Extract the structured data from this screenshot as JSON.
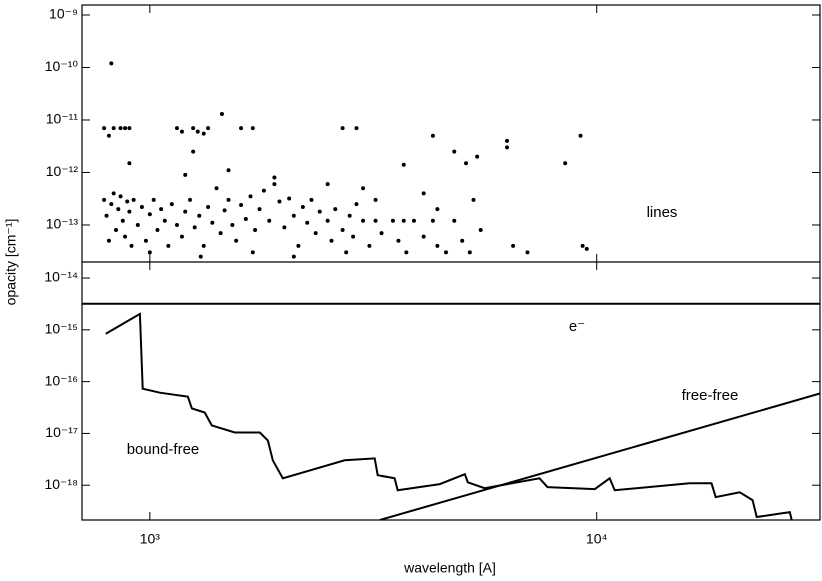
{
  "chart_data": [
    {
      "type": "scatter",
      "xlog": true,
      "ylog": true,
      "xlim": [
        705,
        31600
      ],
      "ylim": [
        1.97e-14,
        1.55e-09
      ],
      "xticks": [
        1000,
        10000
      ],
      "yticks": [
        {
          "value": 1e-09,
          "label": "10⁻⁹"
        },
        {
          "value": 1e-10,
          "label": "10⁻¹⁰"
        },
        {
          "value": 1e-11,
          "label": "10⁻¹¹"
        },
        {
          "value": 1e-12,
          "label": "10⁻¹²"
        },
        {
          "value": 1e-13,
          "label": "10⁻¹³"
        }
      ],
      "annotations": [
        "lines"
      ],
      "series": [
        {
          "color": "#000000",
          "points": [
            [
              790,
              3e-13
            ],
            [
              800,
              1.5e-13
            ],
            [
              810,
              5e-14
            ],
            [
              820,
              2.5e-13
            ],
            [
              830,
              4e-13
            ],
            [
              840,
              8e-14
            ],
            [
              850,
              2e-13
            ],
            [
              860,
              3.5e-13
            ],
            [
              870,
              1.2e-13
            ],
            [
              880,
              6e-14
            ],
            [
              890,
              2.8e-13
            ],
            [
              900,
              1.8e-13
            ],
            [
              910,
              4e-14
            ],
            [
              920,
              3e-13
            ],
            [
              940,
              1e-13
            ],
            [
              960,
              2.2e-13
            ],
            [
              980,
              5e-14
            ],
            [
              1000,
              1.6e-13
            ],
            [
              1020,
              3e-13
            ],
            [
              1040,
              8e-14
            ],
            [
              1060,
              2e-13
            ],
            [
              1080,
              1.2e-13
            ],
            [
              1100,
              4e-14
            ],
            [
              1120,
              2.5e-13
            ],
            [
              1150,
              1e-13
            ],
            [
              1180,
              6e-14
            ],
            [
              1200,
              1.8e-13
            ],
            [
              1230,
              3e-13
            ],
            [
              1260,
              9e-14
            ],
            [
              1290,
              1.5e-13
            ],
            [
              1320,
              4e-14
            ],
            [
              1350,
              2.2e-13
            ],
            [
              1380,
              1.1e-13
            ],
            [
              1410,
              5e-13
            ],
            [
              1440,
              7e-14
            ],
            [
              1470,
              1.9e-13
            ],
            [
              1500,
              3e-13
            ],
            [
              1530,
              1e-13
            ],
            [
              1560,
              5e-14
            ],
            [
              1600,
              2.4e-13
            ],
            [
              1640,
              1.3e-13
            ],
            [
              1680,
              3.5e-13
            ],
            [
              1720,
              8e-14
            ],
            [
              1760,
              2e-13
            ],
            [
              1800,
              4.5e-13
            ],
            [
              1850,
              1.2e-13
            ],
            [
              1900,
              6e-13
            ],
            [
              1950,
              2.8e-13
            ],
            [
              2000,
              9e-14
            ],
            [
              2050,
              3.2e-13
            ],
            [
              2100,
              1.5e-13
            ],
            [
              2150,
              4e-14
            ],
            [
              2200,
              2.2e-13
            ],
            [
              2250,
              1.1e-13
            ],
            [
              2300,
              3e-13
            ],
            [
              2350,
              7e-14
            ],
            [
              2400,
              1.8e-13
            ],
            [
              1000,
              3e-14
            ],
            [
              1300,
              2.5e-14
            ],
            [
              1700,
              3e-14
            ],
            [
              2100,
              2.5e-14
            ],
            [
              900,
              1.5e-12
            ],
            [
              1200,
              9e-13
            ],
            [
              1500,
              1.1e-12
            ],
            [
              1900,
              8e-13
            ],
            [
              2500,
              1.2e-13
            ],
            [
              2550,
              5e-14
            ],
            [
              2600,
              2e-13
            ],
            [
              2700,
              8e-14
            ],
            [
              2750,
              3e-14
            ],
            [
              2800,
              1.5e-13
            ],
            [
              2850,
              6e-14
            ],
            [
              2900,
              2.5e-13
            ],
            [
              3000,
              1.2e-13
            ],
            [
              3100,
              4e-14
            ],
            [
              3200,
              1.2e-13
            ],
            [
              3300,
              7e-14
            ],
            [
              3500,
              1.2e-13
            ],
            [
              3600,
              5e-14
            ],
            [
              3700,
              1.2e-13
            ],
            [
              3750,
              3e-14
            ],
            [
              3900,
              1.2e-13
            ],
            [
              4100,
              6e-14
            ],
            [
              4300,
              1.2e-13
            ],
            [
              4400,
              4e-14
            ],
            [
              4600,
              3e-14
            ],
            [
              4800,
              1.2e-13
            ],
            [
              5000,
              5e-14
            ],
            [
              5200,
              3e-14
            ],
            [
              5500,
              8e-14
            ],
            [
              820,
              1.2e-10
            ],
            [
              790,
              7e-12
            ],
            [
              810,
              5e-12
            ],
            [
              830,
              7e-12
            ],
            [
              860,
              7e-12
            ],
            [
              880,
              7e-12
            ],
            [
              900,
              7e-12
            ],
            [
              1150,
              7e-12
            ],
            [
              1180,
              6e-12
            ],
            [
              1250,
              7e-12
            ],
            [
              1280,
              6e-12
            ],
            [
              1320,
              5.5e-12
            ],
            [
              1350,
              7e-12
            ],
            [
              1450,
              1.3e-11
            ],
            [
              1600,
              7e-12
            ],
            [
              1700,
              7e-12
            ],
            [
              1250,
              2.5e-12
            ],
            [
              2700,
              7e-12
            ],
            [
              2900,
              7e-12
            ],
            [
              3700,
              1.4e-12
            ],
            [
              4300,
              5e-12
            ],
            [
              4800,
              2.5e-12
            ],
            [
              5100,
              1.5e-12
            ],
            [
              5400,
              2e-12
            ],
            [
              6300,
              4e-12
            ],
            [
              6300,
              3e-12
            ],
            [
              8500,
              1.5e-12
            ],
            [
              9200,
              5e-12
            ],
            [
              9300,
              4e-14
            ],
            [
              9500,
              3.5e-14
            ],
            [
              7000,
              3e-14
            ],
            [
              6500,
              4e-14
            ],
            [
              4100,
              4e-13
            ],
            [
              4400,
              2e-13
            ],
            [
              5300,
              3e-13
            ],
            [
              3200,
              3e-13
            ],
            [
              3000,
              5e-13
            ],
            [
              2500,
              6e-13
            ]
          ]
        }
      ]
    },
    {
      "type": "line",
      "xlog": true,
      "ylog": true,
      "xlim": [
        705,
        31600
      ],
      "ylim": [
        2.13e-19,
        2.04e-14
      ],
      "xlabel": "wavelength [A]",
      "ylabel": "opacity [cm⁻¹]",
      "xticks": [
        {
          "value": 1000,
          "label": "10³"
        },
        {
          "value": 10000,
          "label": "10⁴"
        }
      ],
      "yticks": [
        {
          "value": 1e-14,
          "label": "10⁻¹⁴"
        },
        {
          "value": 1e-15,
          "label": "10⁻¹⁵"
        },
        {
          "value": 1e-16,
          "label": "10⁻¹⁶"
        },
        {
          "value": 1e-17,
          "label": "10⁻¹⁷"
        },
        {
          "value": 1e-18,
          "label": "10⁻¹⁸"
        }
      ],
      "annotations": [
        "e⁻",
        "free-free",
        "bound-free"
      ],
      "series": [
        {
          "color": "#000000",
          "x": [
            705,
            31600
          ],
          "values": [
            3.2e-15,
            3.2e-15
          ]
        },
        {
          "color": "#000000",
          "x": [
            3270,
            31600
          ],
          "values": [
            2.13e-19,
            5.9e-17
          ]
        },
        {
          "color": "#000000",
          "x": [
            797,
            950,
            964,
            1053,
            1216,
            1242,
            1327,
            1376,
            1549,
            1762,
            1837,
            1884,
            1984,
            2729,
            3185,
            3236,
            3530,
            3586,
            4456,
            5070,
            5147,
            5614,
            7447,
            7762,
            9900,
            10690,
            10970,
            16140,
            18070,
            18460,
            20890,
            22330,
            22800,
            27040,
            27310
          ],
          "values": [
            8.4e-16,
            2.03e-15,
            7.3e-17,
            6.1e-17,
            5.15e-17,
            3.03e-17,
            2.53e-17,
            1.43e-17,
            1.04e-17,
            1.04e-17,
            7.3e-18,
            3.03e-18,
            1.36e-18,
            3.03e-18,
            3.3e-18,
            1.56e-18,
            1.36e-18,
            8e-19,
            1.05e-18,
            1.63e-18,
            1.14e-18,
            8.75e-19,
            1.36e-18,
            9.2e-19,
            8.4e-19,
            1.36e-18,
            8e-19,
            1.09e-18,
            1.09e-18,
            5.9e-19,
            7.3e-19,
            5.15e-19,
            2.43e-19,
            3.03e-19,
            2.13e-19
          ]
        }
      ]
    }
  ]
}
